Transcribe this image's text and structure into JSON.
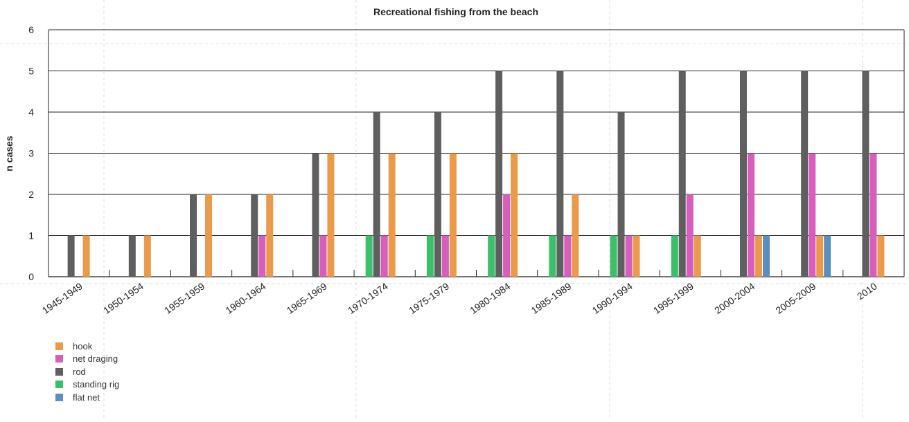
{
  "chart_data": {
    "type": "bar",
    "title": "Recreational fishing from the beach",
    "xlabel": "",
    "ylabel": "n cases",
    "ylim": [
      0,
      6
    ],
    "yticks": [
      "0",
      "1",
      "2",
      "3",
      "4",
      "5",
      "6"
    ],
    "grid": true,
    "legend_position": "bottom-left",
    "categories": [
      "1945-1949",
      "1950-1954",
      "1955-1959",
      "1960-1964",
      "1965-1969",
      "1970-1974",
      "1975-1979",
      "1980-1984",
      "1985-1989",
      "1990-1994",
      "1995-1999",
      "2000-2004",
      "2005-2009",
      "2010"
    ],
    "series": [
      {
        "name": "standing rig",
        "color": "#3bbf6a",
        "values": [
          0,
          0,
          0,
          0,
          0,
          1,
          1,
          1,
          1,
          1,
          1,
          0,
          0,
          0
        ]
      },
      {
        "name": "rod",
        "color": "#5f5f5f",
        "values": [
          1,
          1,
          2,
          2,
          3,
          4,
          4,
          5,
          5,
          4,
          5,
          5,
          5,
          5
        ]
      },
      {
        "name": "net draging",
        "color": "#d75ebc",
        "values": [
          0,
          0,
          0,
          1,
          1,
          1,
          1,
          2,
          1,
          1,
          2,
          3,
          3,
          3
        ]
      },
      {
        "name": "hook",
        "color": "#eb9a4c",
        "values": [
          1,
          1,
          2,
          2,
          3,
          3,
          3,
          3,
          2,
          1,
          1,
          1,
          1,
          1
        ]
      },
      {
        "name": "flat net",
        "color": "#5b8fc0",
        "values": [
          0,
          0,
          0,
          0,
          0,
          0,
          0,
          0,
          0,
          0,
          0,
          1,
          1,
          0
        ]
      }
    ],
    "legend": [
      {
        "name": "hook",
        "color": "#eb9a4c"
      },
      {
        "name": "net draging",
        "color": "#d75ebc"
      },
      {
        "name": "rod",
        "color": "#5f5f5f"
      },
      {
        "name": "standing rig",
        "color": "#3bbf6a"
      },
      {
        "name": "flat net",
        "color": "#5b8fc0"
      }
    ]
  }
}
